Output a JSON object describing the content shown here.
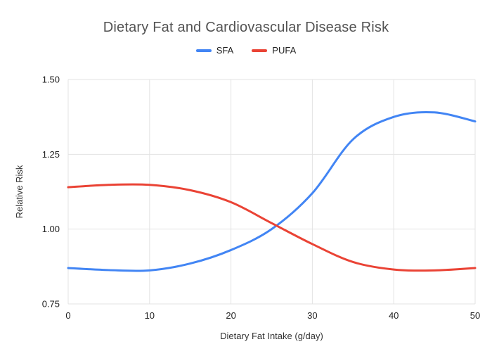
{
  "chart_data": {
    "type": "line",
    "title": "Dietary Fat and Cardiovascular Disease Risk",
    "xlabel": "Dietary Fat Intake (g/day)",
    "ylabel": "Relative Risk",
    "x": [
      0,
      5,
      10,
      15,
      20,
      25,
      30,
      35,
      40,
      45,
      50
    ],
    "series": [
      {
        "name": "SFA",
        "color": "#4285f4",
        "values": [
          0.87,
          0.863,
          0.862,
          0.885,
          0.93,
          1.0,
          1.12,
          1.3,
          1.375,
          1.39,
          1.36
        ]
      },
      {
        "name": "PUFA",
        "color": "#ea4335",
        "values": [
          1.14,
          1.148,
          1.148,
          1.13,
          1.09,
          1.02,
          0.95,
          0.89,
          0.865,
          0.862,
          0.87
        ]
      }
    ],
    "xlim": [
      0,
      50
    ],
    "ylim": [
      0.75,
      1.5
    ],
    "x_ticks": [
      0,
      10,
      20,
      30,
      40,
      50
    ],
    "y_ticks": [
      0.75,
      1.0,
      1.25,
      1.5
    ],
    "grid": true,
    "legend_position": "top",
    "grid_color": "#e3e3e3",
    "background": "#ffffff"
  }
}
